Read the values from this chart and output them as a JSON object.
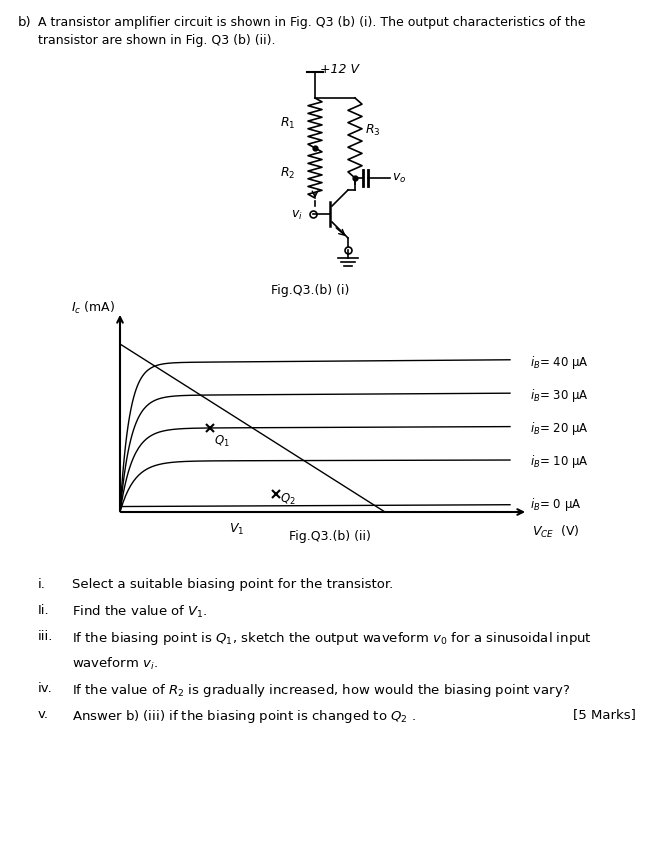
{
  "fig_label_i": "Fig.Q3.(b) (i)",
  "fig_label_ii": "Fig.Q3.(b) (ii)",
  "ic_label": "$I_c$ (mA)",
  "vce_label": "$V_{CE}$  (V)",
  "v1_label": "$V_1$",
  "ib_labels": [
    "$i_B$= 40 μA",
    "$i_B$= 30 μA",
    "$i_B$= 20 μA",
    "$i_B$= 10 μA",
    "$i_B$= 0 μA"
  ],
  "q1_label": "$Q_1$",
  "q2_label": "$Q_2$",
  "marks_label": "[5 Marks]",
  "bg_color": "#ffffff",
  "text_color": "#000000"
}
